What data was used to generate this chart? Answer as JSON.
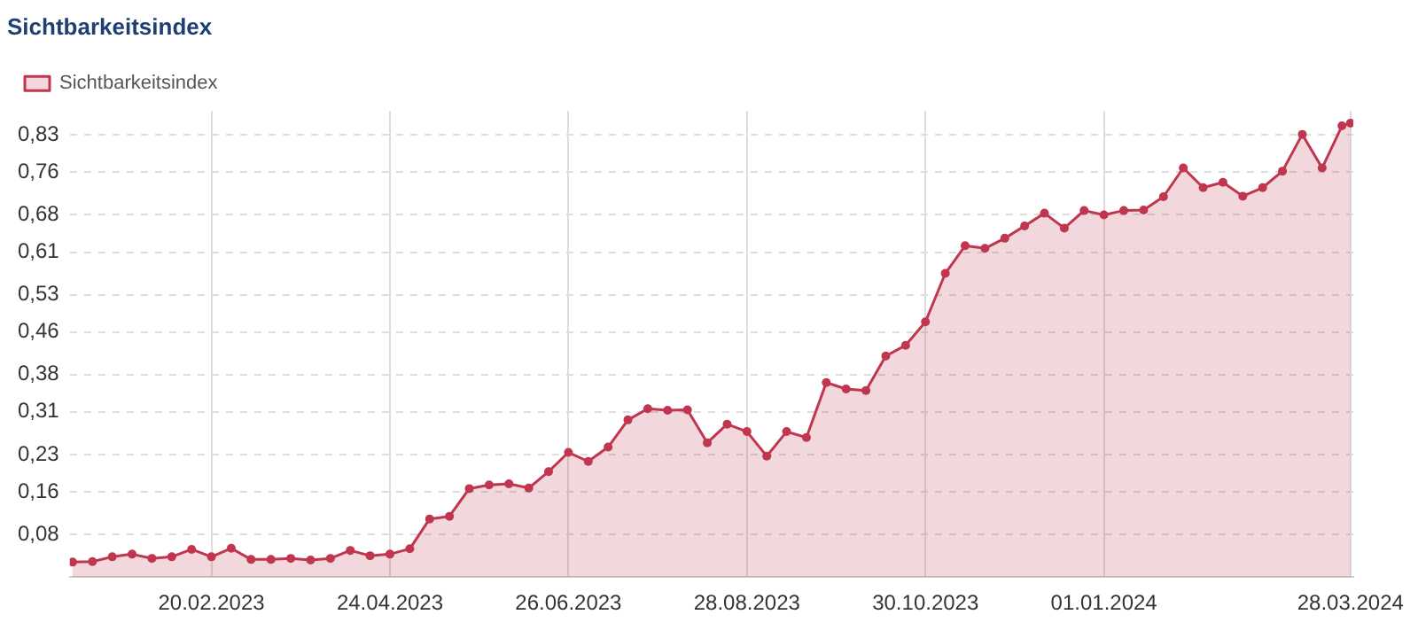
{
  "chart_data": {
    "type": "area",
    "title": "Sichtbarkeitsindex",
    "x": [
      "2023-01-02",
      "2023-01-09",
      "2023-01-16",
      "2023-01-23",
      "2023-01-30",
      "2023-02-06",
      "2023-02-13",
      "2023-02-20",
      "2023-02-27",
      "2023-03-06",
      "2023-03-13",
      "2023-03-20",
      "2023-03-27",
      "2023-04-03",
      "2023-04-10",
      "2023-04-17",
      "2023-04-24",
      "2023-05-01",
      "2023-05-08",
      "2023-05-15",
      "2023-05-22",
      "2023-05-29",
      "2023-06-05",
      "2023-06-12",
      "2023-06-19",
      "2023-06-26",
      "2023-07-03",
      "2023-07-10",
      "2023-07-17",
      "2023-07-24",
      "2023-07-31",
      "2023-08-07",
      "2023-08-14",
      "2023-08-21",
      "2023-08-28",
      "2023-09-04",
      "2023-09-11",
      "2023-09-18",
      "2023-09-25",
      "2023-10-02",
      "2023-10-09",
      "2023-10-16",
      "2023-10-23",
      "2023-10-30",
      "2023-11-06",
      "2023-11-13",
      "2023-11-20",
      "2023-11-27",
      "2023-12-04",
      "2023-12-11",
      "2023-12-18",
      "2023-12-25",
      "2024-01-01",
      "2024-01-08",
      "2024-01-15",
      "2024-01-22",
      "2024-01-29",
      "2024-02-05",
      "2024-02-12",
      "2024-02-19",
      "2024-02-26",
      "2024-03-04",
      "2024-03-11",
      "2024-03-18",
      "2024-03-25",
      "2024-03-28"
    ],
    "series": [
      {
        "name": "Sichtbarkeitsindex",
        "color": "#c0364f",
        "values": [
          0.028,
          0.029,
          0.038,
          0.043,
          0.035,
          0.038,
          0.052,
          0.038,
          0.054,
          0.033,
          0.033,
          0.035,
          0.032,
          0.035,
          0.05,
          0.04,
          0.043,
          0.053,
          0.109,
          0.114,
          0.166,
          0.173,
          0.175,
          0.167,
          0.198,
          0.234,
          0.217,
          0.244,
          0.295,
          0.316,
          0.313,
          0.314,
          0.252,
          0.287,
          0.273,
          0.227,
          0.273,
          0.262,
          0.365,
          0.353,
          0.35,
          0.415,
          0.435,
          0.479,
          0.57,
          0.622,
          0.617,
          0.636,
          0.659,
          0.683,
          0.655,
          0.688,
          0.68,
          0.688,
          0.689,
          0.714,
          0.768,
          0.731,
          0.741,
          0.715,
          0.731,
          0.762,
          0.831,
          0.768,
          0.847,
          0.852
        ]
      }
    ],
    "xlim": [
      "2023-01-01",
      "2024-03-29"
    ],
    "xticks": [
      {
        "value": "2023-02-20",
        "label": "20.02.2023"
      },
      {
        "value": "2023-04-24",
        "label": "24.04.2023"
      },
      {
        "value": "2023-06-26",
        "label": "26.06.2023"
      },
      {
        "value": "2023-08-28",
        "label": "28.08.2023"
      },
      {
        "value": "2023-10-30",
        "label": "30.10.2023"
      },
      {
        "value": "2024-01-01",
        "label": "01.01.2024"
      },
      {
        "value": "2024-03-28",
        "label": "28.03.2024"
      }
    ],
    "ylim": [
      0,
      0.875
    ],
    "yticks": [
      {
        "value": 0.08,
        "label": "0,08"
      },
      {
        "value": 0.16,
        "label": "0,16"
      },
      {
        "value": 0.23,
        "label": "0,23"
      },
      {
        "value": 0.31,
        "label": "0,31"
      },
      {
        "value": 0.38,
        "label": "0,38"
      },
      {
        "value": 0.46,
        "label": "0,46"
      },
      {
        "value": 0.53,
        "label": "0,53"
      },
      {
        "value": 0.61,
        "label": "0,61"
      },
      {
        "value": 0.68,
        "label": "0,68"
      },
      {
        "value": 0.76,
        "label": "0,76"
      },
      {
        "value": 0.83,
        "label": "0,83"
      }
    ],
    "grid": true,
    "legend": "top left",
    "marker": "circle",
    "line_style": "solid"
  }
}
